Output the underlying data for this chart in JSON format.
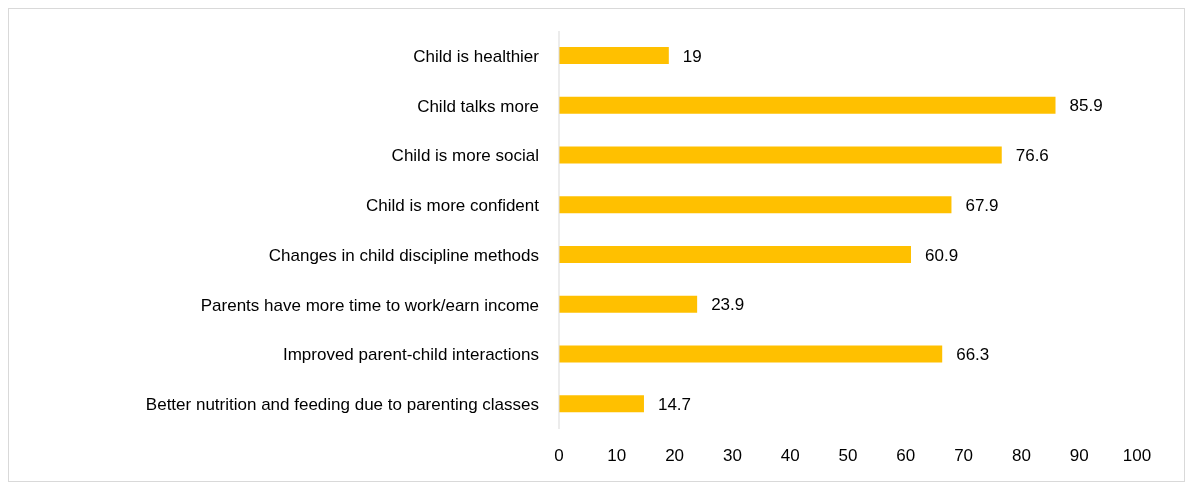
{
  "chart_data": {
    "type": "bar",
    "orientation": "horizontal",
    "categories": [
      "Child is healthier",
      "Child talks more",
      "Child is more social",
      "Child is more confident",
      "Changes in child discipline methods",
      "Parents have more time to work/earn income",
      "Improved parent-child interactions",
      "Better nutrition and feeding due to parenting classes"
    ],
    "values": [
      19,
      85.9,
      76.6,
      67.9,
      60.9,
      23.9,
      66.3,
      14.7
    ],
    "color": "#ffc000",
    "xlim": [
      0,
      100
    ],
    "xticks": [
      0,
      10,
      20,
      30,
      40,
      50,
      60,
      70,
      80,
      90,
      100
    ],
    "data_labels": true
  }
}
